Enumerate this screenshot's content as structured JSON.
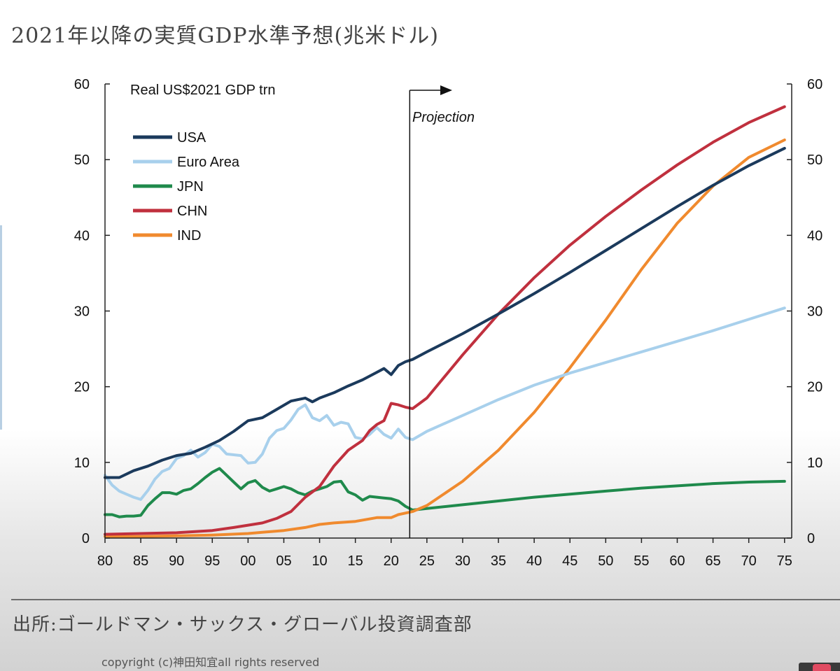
{
  "page": {
    "title": "2021年以降の実質GDP水準予想(兆米ドル)",
    "source_note": "出所:ゴールドマン・サックス・グローバル投資調査部",
    "copyright": "copyright (c)神田知宜all rights reserved"
  },
  "chart_data": {
    "type": "line",
    "title": "Real US$2021 GDP trn",
    "annotation": "Projection",
    "projection_start_x": 2022.6,
    "xlim": [
      1980,
      2076
    ],
    "ylim": [
      0,
      60
    ],
    "x_tick_values": [
      1980,
      1985,
      1990,
      1995,
      2000,
      2005,
      2010,
      2015,
      2020,
      2025,
      2030,
      2035,
      2040,
      2045,
      2050,
      2055,
      2060,
      2065,
      2070,
      2075
    ],
    "x_tick_labels": [
      "80",
      "85",
      "90",
      "95",
      "00",
      "05",
      "10",
      "15",
      "20",
      "25",
      "30",
      "35",
      "40",
      "45",
      "50",
      "55",
      "60",
      "65",
      "70",
      "75"
    ],
    "y_ticks": [
      0,
      10,
      20,
      30,
      40,
      50,
      60
    ],
    "axes": "left-and-right",
    "grid": false,
    "legend_position": "top-left",
    "series": [
      {
        "name": "USA",
        "color": "#1b3a5c",
        "points": [
          [
            1980,
            8.0
          ],
          [
            1982,
            8.0
          ],
          [
            1984,
            8.9
          ],
          [
            1986,
            9.5
          ],
          [
            1988,
            10.3
          ],
          [
            1990,
            10.9
          ],
          [
            1992,
            11.2
          ],
          [
            1994,
            12.0
          ],
          [
            1996,
            12.9
          ],
          [
            1998,
            14.1
          ],
          [
            2000,
            15.5
          ],
          [
            2002,
            15.9
          ],
          [
            2004,
            17.0
          ],
          [
            2006,
            18.1
          ],
          [
            2008,
            18.5
          ],
          [
            2009,
            18.0
          ],
          [
            2010,
            18.5
          ],
          [
            2012,
            19.2
          ],
          [
            2014,
            20.1
          ],
          [
            2016,
            20.9
          ],
          [
            2018,
            21.9
          ],
          [
            2019,
            22.4
          ],
          [
            2020,
            21.6
          ],
          [
            2021,
            22.8
          ],
          [
            2022,
            23.3
          ],
          [
            2023,
            23.6
          ],
          [
            2025,
            24.6
          ],
          [
            2030,
            27.0
          ],
          [
            2035,
            29.6
          ],
          [
            2040,
            32.3
          ],
          [
            2045,
            35.1
          ],
          [
            2050,
            38.0
          ],
          [
            2055,
            40.9
          ],
          [
            2060,
            43.8
          ],
          [
            2065,
            46.6
          ],
          [
            2070,
            49.2
          ],
          [
            2075,
            51.5
          ]
        ]
      },
      {
        "name": "Euro Area",
        "color": "#a8d0ec",
        "points": [
          [
            1980,
            8.3
          ],
          [
            1981,
            7.0
          ],
          [
            1982,
            6.2
          ],
          [
            1983,
            5.8
          ],
          [
            1984,
            5.4
          ],
          [
            1985,
            5.1
          ],
          [
            1986,
            6.3
          ],
          [
            1987,
            7.8
          ],
          [
            1988,
            8.8
          ],
          [
            1989,
            9.2
          ],
          [
            1990,
            10.5
          ],
          [
            1991,
            10.9
          ],
          [
            1992,
            11.6
          ],
          [
            1993,
            10.7
          ],
          [
            1994,
            11.3
          ],
          [
            1995,
            12.4
          ],
          [
            1996,
            12.1
          ],
          [
            1997,
            11.1
          ],
          [
            1998,
            11.0
          ],
          [
            1999,
            10.9
          ],
          [
            2000,
            9.9
          ],
          [
            2001,
            10.0
          ],
          [
            2002,
            11.1
          ],
          [
            2003,
            13.2
          ],
          [
            2004,
            14.2
          ],
          [
            2005,
            14.5
          ],
          [
            2006,
            15.6
          ],
          [
            2007,
            17.0
          ],
          [
            2008,
            17.6
          ],
          [
            2009,
            15.9
          ],
          [
            2010,
            15.5
          ],
          [
            2011,
            16.2
          ],
          [
            2012,
            14.9
          ],
          [
            2013,
            15.3
          ],
          [
            2014,
            15.1
          ],
          [
            2015,
            13.3
          ],
          [
            2016,
            13.1
          ],
          [
            2017,
            13.7
          ],
          [
            2018,
            14.6
          ],
          [
            2019,
            13.7
          ],
          [
            2020,
            13.2
          ],
          [
            2021,
            14.4
          ],
          [
            2022,
            13.3
          ],
          [
            2023,
            13.0
          ],
          [
            2025,
            14.1
          ],
          [
            2030,
            16.2
          ],
          [
            2035,
            18.3
          ],
          [
            2040,
            20.2
          ],
          [
            2045,
            21.8
          ],
          [
            2050,
            23.2
          ],
          [
            2055,
            24.6
          ],
          [
            2060,
            26.0
          ],
          [
            2065,
            27.4
          ],
          [
            2070,
            28.9
          ],
          [
            2075,
            30.4
          ]
        ]
      },
      {
        "name": "JPN",
        "color": "#1f8a4c",
        "points": [
          [
            1980,
            3.1
          ],
          [
            1981,
            3.1
          ],
          [
            1982,
            2.8
          ],
          [
            1983,
            2.9
          ],
          [
            1984,
            2.9
          ],
          [
            1985,
            3.0
          ],
          [
            1986,
            4.3
          ],
          [
            1987,
            5.2
          ],
          [
            1988,
            6.0
          ],
          [
            1989,
            6.0
          ],
          [
            1990,
            5.8
          ],
          [
            1991,
            6.3
          ],
          [
            1992,
            6.5
          ],
          [
            1993,
            7.2
          ],
          [
            1994,
            8.0
          ],
          [
            1995,
            8.7
          ],
          [
            1996,
            9.2
          ],
          [
            1997,
            8.3
          ],
          [
            1998,
            7.4
          ],
          [
            1999,
            6.5
          ],
          [
            2000,
            7.3
          ],
          [
            2001,
            7.6
          ],
          [
            2002,
            6.7
          ],
          [
            2003,
            6.2
          ],
          [
            2004,
            6.5
          ],
          [
            2005,
            6.8
          ],
          [
            2006,
            6.5
          ],
          [
            2007,
            6.0
          ],
          [
            2008,
            5.7
          ],
          [
            2009,
            6.2
          ],
          [
            2010,
            6.5
          ],
          [
            2011,
            6.8
          ],
          [
            2012,
            7.4
          ],
          [
            2013,
            7.5
          ],
          [
            2014,
            6.1
          ],
          [
            2015,
            5.7
          ],
          [
            2016,
            5.0
          ],
          [
            2017,
            5.5
          ],
          [
            2018,
            5.4
          ],
          [
            2019,
            5.3
          ],
          [
            2020,
            5.2
          ],
          [
            2021,
            4.9
          ],
          [
            2022,
            4.2
          ],
          [
            2023,
            3.7
          ],
          [
            2025,
            3.9
          ],
          [
            2030,
            4.4
          ],
          [
            2035,
            4.9
          ],
          [
            2040,
            5.4
          ],
          [
            2045,
            5.8
          ],
          [
            2050,
            6.2
          ],
          [
            2055,
            6.6
          ],
          [
            2060,
            6.9
          ],
          [
            2065,
            7.2
          ],
          [
            2070,
            7.4
          ],
          [
            2075,
            7.5
          ]
        ]
      },
      {
        "name": "CHN",
        "color": "#c0303e",
        "points": [
          [
            1980,
            0.5
          ],
          [
            1985,
            0.6
          ],
          [
            1990,
            0.7
          ],
          [
            1995,
            1.0
          ],
          [
            1998,
            1.4
          ],
          [
            2000,
            1.7
          ],
          [
            2002,
            2.0
          ],
          [
            2004,
            2.6
          ],
          [
            2006,
            3.5
          ],
          [
            2008,
            5.4
          ],
          [
            2010,
            6.8
          ],
          [
            2012,
            9.5
          ],
          [
            2014,
            11.6
          ],
          [
            2016,
            12.9
          ],
          [
            2017,
            14.2
          ],
          [
            2018,
            15.0
          ],
          [
            2019,
            15.5
          ],
          [
            2020,
            17.8
          ],
          [
            2021,
            17.6
          ],
          [
            2022,
            17.3
          ],
          [
            2023,
            17.1
          ],
          [
            2025,
            18.5
          ],
          [
            2030,
            24.2
          ],
          [
            2035,
            29.6
          ],
          [
            2040,
            34.4
          ],
          [
            2045,
            38.7
          ],
          [
            2050,
            42.5
          ],
          [
            2055,
            46.0
          ],
          [
            2060,
            49.3
          ],
          [
            2065,
            52.3
          ],
          [
            2070,
            54.9
          ],
          [
            2075,
            57.0
          ]
        ]
      },
      {
        "name": "IND",
        "color": "#f08a2e",
        "points": [
          [
            1980,
            0.2
          ],
          [
            1985,
            0.2
          ],
          [
            1990,
            0.3
          ],
          [
            1995,
            0.4
          ],
          [
            2000,
            0.6
          ],
          [
            2005,
            1.0
          ],
          [
            2008,
            1.4
          ],
          [
            2010,
            1.8
          ],
          [
            2012,
            2.0
          ],
          [
            2015,
            2.2
          ],
          [
            2018,
            2.7
          ],
          [
            2020,
            2.7
          ],
          [
            2021,
            3.1
          ],
          [
            2022,
            3.3
          ],
          [
            2023,
            3.5
          ],
          [
            2025,
            4.3
          ],
          [
            2030,
            7.5
          ],
          [
            2035,
            11.6
          ],
          [
            2040,
            16.6
          ],
          [
            2045,
            22.5
          ],
          [
            2050,
            28.8
          ],
          [
            2055,
            35.5
          ],
          [
            2060,
            41.6
          ],
          [
            2065,
            46.5
          ],
          [
            2070,
            50.3
          ],
          [
            2075,
            52.6
          ]
        ]
      }
    ]
  }
}
